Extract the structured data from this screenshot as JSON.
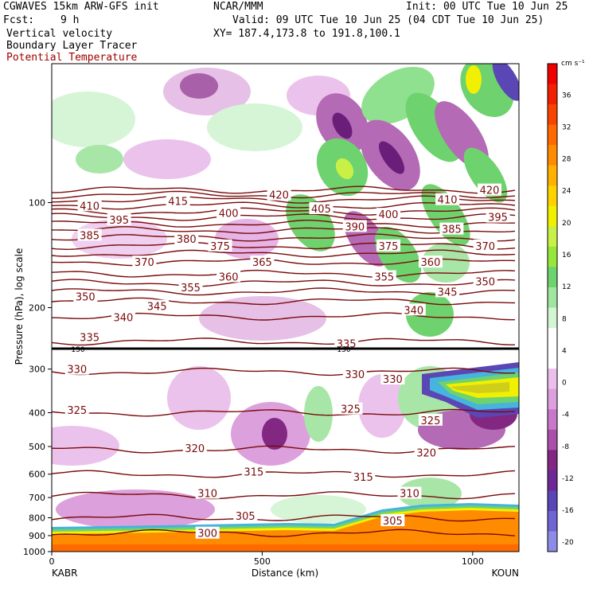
{
  "header": {
    "model": "CGWAVES 15km ARW-GFS init",
    "org": "NCAR/MMM",
    "init": "Init: 00 UTC Tue 10 Jun 25",
    "fcst_label": "Fcst:",
    "fcst_value": "9 h",
    "valid": "Valid: 09 UTC Tue 10 Jun 25 (04 CDT Tue 10 Jun 25)",
    "field1": "Vertical velocity",
    "xy": "XY= 187.4,173.8 to 191.8,100.1",
    "field2": "Boundary Layer Tracer",
    "field3": "Potential Temperature"
  },
  "chart_data": {
    "type": "heatmap",
    "xlabel": "Distance (km)",
    "ylabel": "Pressure (hPa), log scale",
    "x_ticks": [
      0,
      500,
      1000
    ],
    "xlim": [
      0,
      1110
    ],
    "ylim": [
      1000,
      40
    ],
    "y_ticks": [
      100,
      200,
      300,
      400,
      500,
      600,
      700,
      800,
      900,
      1000
    ],
    "endpoints": {
      "left": "KABR",
      "right": "KOUN"
    },
    "colorbar": {
      "unit": "cm s⁻¹",
      "ticks": [
        36,
        32,
        28,
        24,
        20,
        16,
        12,
        8,
        4,
        0,
        -4,
        -8,
        -12,
        -16,
        -20
      ],
      "colors": [
        "#f00000",
        "#f02000",
        "#f84400",
        "#ff6a00",
        "#ff8c00",
        "#ffb000",
        "#ffd200",
        "#f0f000",
        "#c8f046",
        "#96e63c",
        "#6ed26e",
        "#a0e6a0",
        "#d2f5d2",
        "#ffffff",
        "#ffffff",
        "#ebbeeb",
        "#dca0dc",
        "#c878c8",
        "#aa50aa",
        "#822882",
        "#6e2896",
        "#5a46b4",
        "#6e64d2",
        "#8c8ce6"
      ]
    },
    "pressure_level_label": "150",
    "theta_labels": [
      {
        "v": "410",
        "x": 90,
        "p": 102
      },
      {
        "v": "415",
        "x": 300,
        "p": 99
      },
      {
        "v": "420",
        "x": 540,
        "p": 95
      },
      {
        "v": "410",
        "x": 940,
        "p": 98
      },
      {
        "v": "420",
        "x": 1040,
        "p": 92
      },
      {
        "v": "400",
        "x": 420,
        "p": 107
      },
      {
        "v": "405",
        "x": 640,
        "p": 104
      },
      {
        "v": "400",
        "x": 800,
        "p": 108
      },
      {
        "v": "395",
        "x": 160,
        "p": 112
      },
      {
        "v": "390",
        "x": 720,
        "p": 117
      },
      {
        "v": "395",
        "x": 1060,
        "p": 110
      },
      {
        "v": "385",
        "x": 90,
        "p": 124
      },
      {
        "v": "380",
        "x": 320,
        "p": 127
      },
      {
        "v": "385",
        "x": 950,
        "p": 119
      },
      {
        "v": "375",
        "x": 400,
        "p": 133
      },
      {
        "v": "375",
        "x": 800,
        "p": 133
      },
      {
        "v": "370",
        "x": 1030,
        "p": 133
      },
      {
        "v": "370",
        "x": 220,
        "p": 148
      },
      {
        "v": "365",
        "x": 500,
        "p": 148
      },
      {
        "v": "360",
        "x": 900,
        "p": 148
      },
      {
        "v": "360",
        "x": 420,
        "p": 163
      },
      {
        "v": "355",
        "x": 330,
        "p": 175
      },
      {
        "v": "355",
        "x": 790,
        "p": 163
      },
      {
        "v": "350",
        "x": 1030,
        "p": 168
      },
      {
        "v": "350",
        "x": 80,
        "p": 186
      },
      {
        "v": "345",
        "x": 250,
        "p": 198
      },
      {
        "v": "345",
        "x": 940,
        "p": 180
      },
      {
        "v": "340",
        "x": 170,
        "p": 213
      },
      {
        "v": "340",
        "x": 860,
        "p": 203
      },
      {
        "v": "335",
        "x": 90,
        "p": 243
      },
      {
        "v": "335",
        "x": 700,
        "p": 253
      },
      {
        "v": "330",
        "x": 60,
        "p": 300
      },
      {
        "v": "330",
        "x": 720,
        "p": 310
      },
      {
        "v": "330",
        "x": 810,
        "p": 320
      },
      {
        "v": "325",
        "x": 60,
        "p": 393
      },
      {
        "v": "325",
        "x": 710,
        "p": 390
      },
      {
        "v": "325",
        "x": 900,
        "p": 420
      },
      {
        "v": "320",
        "x": 340,
        "p": 505
      },
      {
        "v": "320",
        "x": 890,
        "p": 520
      },
      {
        "v": "315",
        "x": 480,
        "p": 590
      },
      {
        "v": "315",
        "x": 740,
        "p": 610
      },
      {
        "v": "310",
        "x": 370,
        "p": 680
      },
      {
        "v": "310",
        "x": 850,
        "p": 680
      },
      {
        "v": "305",
        "x": 460,
        "p": 790
      },
      {
        "v": "305",
        "x": 810,
        "p": 815
      },
      {
        "v": "300",
        "x": 370,
        "p": 885
      }
    ]
  }
}
